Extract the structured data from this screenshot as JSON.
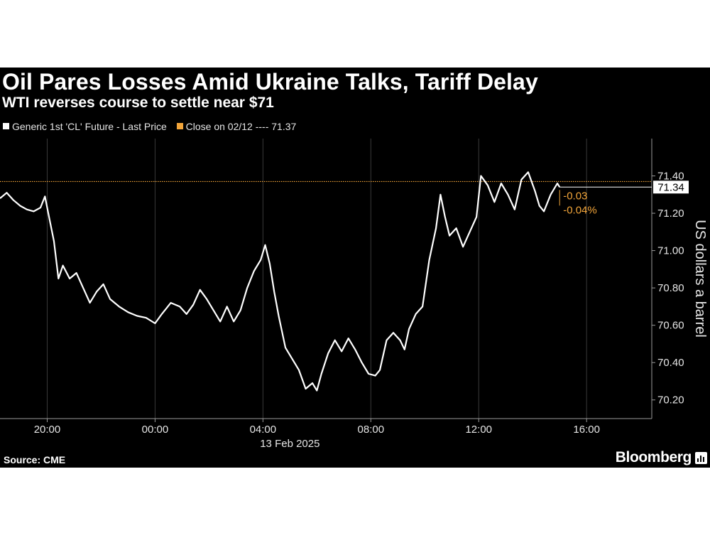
{
  "chart_data": {
    "type": "line",
    "title": "Oil Pares Losses Amid Ukraine Talks, Tariff Delay",
    "subtitle": "WTI reverses course to settle near $71",
    "ylabel": "US dollars a barrel",
    "legend": [
      {
        "label": "Generic 1st 'CL' Future - Last Price",
        "color": "#ffffff"
      },
      {
        "label": "Close on 02/12 ---- 71.37",
        "color": "#f2a53a"
      }
    ],
    "legend_position": "top-left",
    "x_range": [
      "2025-02-12T18:15",
      "2025-02-13T18:25"
    ],
    "x_ticks": [
      {
        "time": "2025-02-12T20:00",
        "label": "20:00"
      },
      {
        "time": "2025-02-13T00:00",
        "label": "00:00"
      },
      {
        "time": "2025-02-13T04:00",
        "label": "04:00"
      },
      {
        "time": "2025-02-13T08:00",
        "label": "08:00"
      },
      {
        "time": "2025-02-13T12:00",
        "label": "12:00"
      },
      {
        "time": "2025-02-13T16:00",
        "label": "16:00"
      }
    ],
    "date_label": "13 Feb 2025",
    "y_axis": "right",
    "ylim": [
      70.1,
      71.6
    ],
    "y_ticks": [
      70.2,
      70.4,
      70.6,
      70.8,
      71.0,
      71.2,
      71.4
    ],
    "y_tick_labels": [
      "70.20",
      "70.40",
      "70.60",
      "70.80",
      "71.00",
      "71.20",
      "71.40"
    ],
    "grid": "vertical",
    "reference_line": {
      "value": 71.37,
      "color": "#f2a53a"
    },
    "last_value": 71.34,
    "last_value_label": "71.34",
    "change_labels": [
      "-0.03",
      "-0.04%"
    ],
    "series": [
      {
        "name": "Generic 1st 'CL' Future - Last Price",
        "color": "#ffffff",
        "points": [
          [
            "2025-02-12T18:15",
            71.28
          ],
          [
            "2025-02-12T18:30",
            71.31
          ],
          [
            "2025-02-12T18:45",
            71.27
          ],
          [
            "2025-02-12T19:00",
            71.24
          ],
          [
            "2025-02-12T19:15",
            71.22
          ],
          [
            "2025-02-12T19:30",
            71.21
          ],
          [
            "2025-02-12T19:45",
            71.23
          ],
          [
            "2025-02-12T19:55",
            71.29
          ],
          [
            "2025-02-12T20:05",
            71.17
          ],
          [
            "2025-02-12T20:15",
            71.05
          ],
          [
            "2025-02-12T20:25",
            70.85
          ],
          [
            "2025-02-12T20:35",
            70.92
          ],
          [
            "2025-02-12T20:50",
            70.85
          ],
          [
            "2025-02-12T21:05",
            70.88
          ],
          [
            "2025-02-12T21:20",
            70.8
          ],
          [
            "2025-02-12T21:35",
            70.72
          ],
          [
            "2025-02-12T21:50",
            70.78
          ],
          [
            "2025-02-12T22:05",
            70.82
          ],
          [
            "2025-02-12T22:20",
            70.74
          ],
          [
            "2025-02-12T22:40",
            70.7
          ],
          [
            "2025-02-12T23:00",
            70.67
          ],
          [
            "2025-02-12T23:20",
            70.65
          ],
          [
            "2025-02-12T23:40",
            70.64
          ],
          [
            "2025-02-13T00:00",
            70.61
          ],
          [
            "2025-02-13T00:15",
            70.66
          ],
          [
            "2025-02-13T00:35",
            70.72
          ],
          [
            "2025-02-13T00:55",
            70.7
          ],
          [
            "2025-02-13T01:10",
            70.66
          ],
          [
            "2025-02-13T01:25",
            70.71
          ],
          [
            "2025-02-13T01:40",
            70.79
          ],
          [
            "2025-02-13T01:55",
            70.74
          ],
          [
            "2025-02-13T02:10",
            70.68
          ],
          [
            "2025-02-13T02:25",
            70.62
          ],
          [
            "2025-02-13T02:40",
            70.7
          ],
          [
            "2025-02-13T02:55",
            70.62
          ],
          [
            "2025-02-13T03:10",
            70.68
          ],
          [
            "2025-02-13T03:25",
            70.8
          ],
          [
            "2025-02-13T03:40",
            70.89
          ],
          [
            "2025-02-13T03:55",
            70.95
          ],
          [
            "2025-02-13T04:05",
            71.03
          ],
          [
            "2025-02-13T04:15",
            70.93
          ],
          [
            "2025-02-13T04:25",
            70.78
          ],
          [
            "2025-02-13T04:35",
            70.65
          ],
          [
            "2025-02-13T04:50",
            70.48
          ],
          [
            "2025-02-13T05:05",
            70.42
          ],
          [
            "2025-02-13T05:20",
            70.36
          ],
          [
            "2025-02-13T05:35",
            70.26
          ],
          [
            "2025-02-13T05:50",
            70.29
          ],
          [
            "2025-02-13T06:00",
            70.25
          ],
          [
            "2025-02-13T06:10",
            70.34
          ],
          [
            "2025-02-13T06:25",
            70.45
          ],
          [
            "2025-02-13T06:40",
            70.52
          ],
          [
            "2025-02-13T06:55",
            70.46
          ],
          [
            "2025-02-13T07:10",
            70.53
          ],
          [
            "2025-02-13T07:25",
            70.47
          ],
          [
            "2025-02-13T07:40",
            70.4
          ],
          [
            "2025-02-13T07:55",
            70.34
          ],
          [
            "2025-02-13T08:10",
            70.33
          ],
          [
            "2025-02-13T08:20",
            70.36
          ],
          [
            "2025-02-13T08:35",
            70.52
          ],
          [
            "2025-02-13T08:50",
            70.56
          ],
          [
            "2025-02-13T09:05",
            70.52
          ],
          [
            "2025-02-13T09:15",
            70.47
          ],
          [
            "2025-02-13T09:25",
            70.58
          ],
          [
            "2025-02-13T09:40",
            70.66
          ],
          [
            "2025-02-13T09:55",
            70.7
          ],
          [
            "2025-02-13T10:10",
            70.95
          ],
          [
            "2025-02-13T10:25",
            71.12
          ],
          [
            "2025-02-13T10:35",
            71.3
          ],
          [
            "2025-02-13T10:45",
            71.18
          ],
          [
            "2025-02-13T10:55",
            71.08
          ],
          [
            "2025-02-13T11:10",
            71.12
          ],
          [
            "2025-02-13T11:25",
            71.02
          ],
          [
            "2025-02-13T11:40",
            71.1
          ],
          [
            "2025-02-13T11:55",
            71.18
          ],
          [
            "2025-02-13T12:05",
            71.4
          ],
          [
            "2025-02-13T12:20",
            71.35
          ],
          [
            "2025-02-13T12:35",
            71.26
          ],
          [
            "2025-02-13T12:50",
            71.36
          ],
          [
            "2025-02-13T13:05",
            71.3
          ],
          [
            "2025-02-13T13:20",
            71.22
          ],
          [
            "2025-02-13T13:35",
            71.38
          ],
          [
            "2025-02-13T13:50",
            71.42
          ],
          [
            "2025-02-13T14:05",
            71.32
          ],
          [
            "2025-02-13T14:15",
            71.24
          ],
          [
            "2025-02-13T14:25",
            71.21
          ],
          [
            "2025-02-13T14:40",
            71.3
          ],
          [
            "2025-02-13T14:55",
            71.36
          ],
          [
            "2025-02-13T15:00",
            71.34
          ]
        ]
      }
    ],
    "source": "Source: CME",
    "brand": "Bloomberg"
  }
}
